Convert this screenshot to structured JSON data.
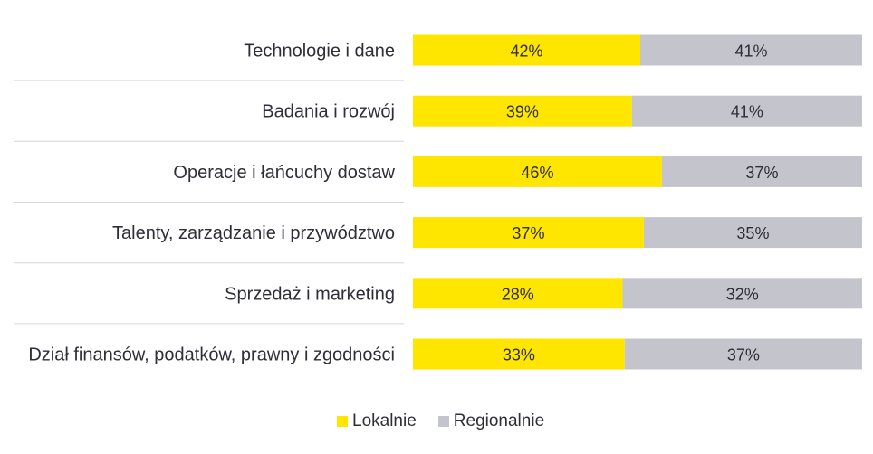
{
  "chart_data": {
    "type": "bar",
    "orientation": "horizontal",
    "stacked": true,
    "categories": [
      "Technologie i dane",
      "Badania i rozwój",
      "Operacje i łańcuchy dostaw",
      "Talenty, zarządzanie i przywództwo",
      "Sprzedaż i marketing",
      "Dział finansów, podatków, prawny i zgodności"
    ],
    "series": [
      {
        "name": "Lokalnie",
        "color": "#ffe600",
        "values": [
          42,
          39,
          46,
          37,
          28,
          33
        ],
        "labels": [
          "42%",
          "39%",
          "46%",
          "37%",
          "28%",
          "33%"
        ]
      },
      {
        "name": "Regionalnie",
        "color": "#c4c4cd",
        "values": [
          41,
          41,
          37,
          35,
          32,
          37
        ],
        "labels": [
          "41%",
          "41%",
          "37%",
          "35%",
          "32%",
          "37%"
        ]
      }
    ],
    "legend_position": "bottom-center",
    "grid": false
  }
}
